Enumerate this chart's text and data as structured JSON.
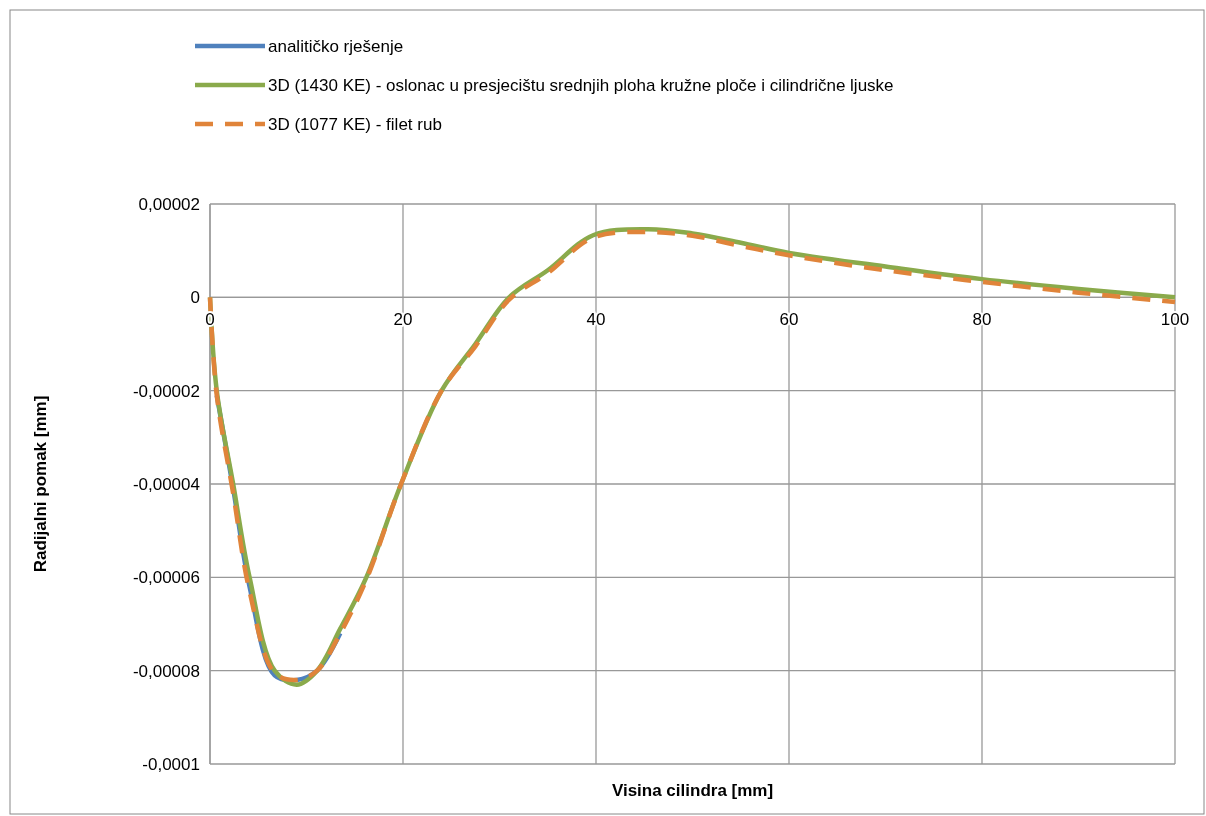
{
  "chart_data": {
    "type": "line",
    "xlabel": "Visina cilindra [mm]",
    "ylabel": "Radijalni pomak [mm]",
    "xlim": [
      0,
      100
    ],
    "xticks": [
      0,
      20,
      40,
      60,
      80,
      100
    ],
    "ylim": [
      -0.0001,
      2e-05
    ],
    "yticks": [
      {
        "value": -0.0001,
        "label": "-0,0001"
      },
      {
        "value": -8e-05,
        "label": "-0,00008"
      },
      {
        "value": -6e-05,
        "label": "-0,00006"
      },
      {
        "value": -4e-05,
        "label": "-0,00004"
      },
      {
        "value": -2e-05,
        "label": "-0,00002"
      },
      {
        "value": 0,
        "label": "0"
      },
      {
        "value": 2e-05,
        "label": "0,00002"
      }
    ],
    "grid": true,
    "legend": "top",
    "marker": "none",
    "x": [
      0,
      0.7,
      2.4,
      4.1,
      6.7,
      9,
      11.1,
      13.5,
      16.2,
      19.8,
      24,
      27.5,
      31,
      35,
      39.7,
      45.3,
      50,
      55,
      60,
      70,
      80,
      90,
      100
    ],
    "series": [
      {
        "name": "analitičko rješenje",
        "color": "#4f81bd",
        "line_style": "solid",
        "values": [
          null,
          -2.1e-05,
          -4.1e-05,
          -6.2e-05,
          -8.1e-05,
          -8.2e-05,
          -8e-05,
          -7.2e-05,
          null,
          null,
          null,
          null,
          null,
          null,
          null,
          null,
          null,
          null,
          null,
          null,
          null,
          null,
          null
        ]
      },
      {
        "name": "3D (1430 KE) - oslonac u presjecištu srednjih ploha kružne ploče i cilindrične ljuske",
        "color": "#8aaa4b",
        "line_style": "solid",
        "values": [
          0,
          -2e-05,
          -4e-05,
          -6e-05,
          -8e-05,
          -8.3e-05,
          -8e-05,
          -7.1e-05,
          -6e-05,
          -4e-05,
          -2e-05,
          -1e-05,
          0,
          5.8e-06,
          1.33e-05,
          1.46e-05,
          1.37e-05,
          1.17e-05,
          9.5e-06,
          6.6e-06,
          3.9e-06,
          1.8e-06,
          0
        ]
      },
      {
        "name": "3D (1077 KE) - filet rub",
        "color": "#e0843a",
        "line_style": "dashed",
        "values": [
          0,
          -2.1e-05,
          -4.2e-05,
          -6.3e-05,
          -8.05e-05,
          -8.2e-05,
          -8e-05,
          -7.2e-05,
          -6.05e-05,
          -4e-05,
          -2e-05,
          -1.05e-05,
          -5e-07,
          5.2e-06,
          1.28e-05,
          1.4e-05,
          1.32e-05,
          1.1e-05,
          9e-06,
          5.8e-06,
          3.3e-06,
          1e-06,
          -1e-06
        ]
      }
    ]
  }
}
